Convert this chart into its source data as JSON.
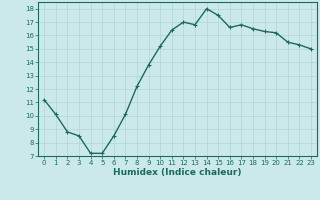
{
  "x": [
    0,
    1,
    2,
    3,
    4,
    5,
    6,
    7,
    8,
    9,
    10,
    11,
    12,
    13,
    14,
    15,
    16,
    17,
    18,
    19,
    20,
    21,
    22,
    23
  ],
  "y": [
    11.2,
    10.1,
    8.8,
    8.5,
    7.2,
    7.2,
    8.5,
    10.1,
    12.2,
    13.8,
    15.2,
    16.4,
    17.0,
    16.8,
    18.0,
    17.5,
    16.6,
    16.8,
    16.5,
    16.3,
    16.2,
    15.5,
    15.3,
    15.0
  ],
  "line_color": "#1a6b5a",
  "marker": "+",
  "marker_size": 3,
  "xlabel": "Humidex (Indice chaleur)",
  "xlim": [
    -0.5,
    23.5
  ],
  "ylim": [
    7,
    18.5
  ],
  "yticks": [
    7,
    8,
    9,
    10,
    11,
    12,
    13,
    14,
    15,
    16,
    17,
    18
  ],
  "xticks": [
    0,
    1,
    2,
    3,
    4,
    5,
    6,
    7,
    8,
    9,
    10,
    11,
    12,
    13,
    14,
    15,
    16,
    17,
    18,
    19,
    20,
    21,
    22,
    23
  ],
  "bg_color": "#cce9e9",
  "grid_color": "#b0d4d4",
  "line_width": 1.0,
  "tick_fontsize": 5,
  "xlabel_fontsize": 6.5
}
